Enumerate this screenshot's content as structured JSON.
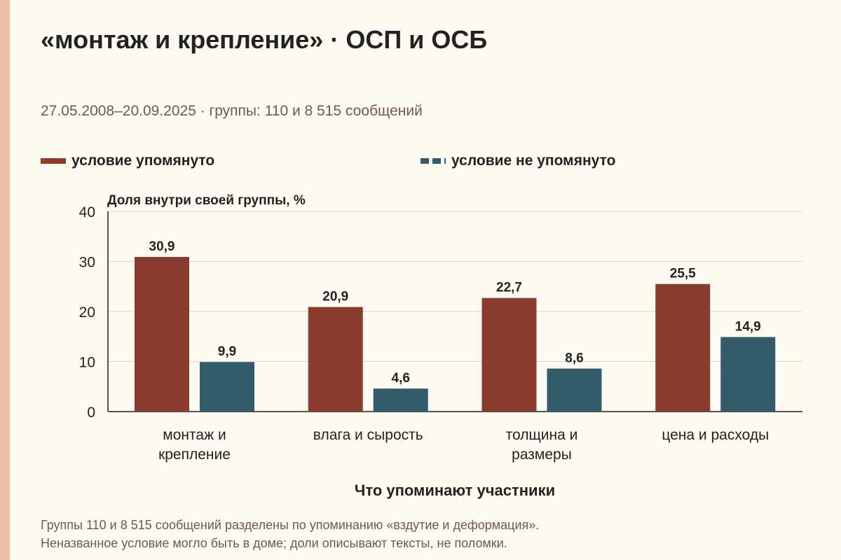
{
  "title": "«монтаж и крепление» · ОСП и ОСБ",
  "subtitle": "27.05.2008–20.09.2025 · группы: 110 и 8 515 сообщений",
  "colors": {
    "background": "#fdfaf2",
    "mentioned": "#8a3c2f",
    "not_mentioned": "#345b6a",
    "grid": "#d9d4c8",
    "axis": "#222222",
    "footnote": "#6b5a52"
  },
  "footnote": {
    "line1": "Группы 110 и 8 515 сообщений разделены по упоминанию «вздутие и деформация».",
    "line2": "Неназванное условие могло быть в доме; доли описывают тексты, не поломки."
  },
  "chart_data": {
    "type": "bar",
    "title": "«монтаж и крепление» · ОСП и ОСБ",
    "subtitle": "27.05.2008–20.09.2025 · группы: 110 и 8 515 сообщений",
    "ylabel": "Доля внутри своей группы, %",
    "xlabel": "Что упоминают участники",
    "ylim": [
      0,
      40
    ],
    "yticks": [
      0,
      10,
      20,
      30,
      40
    ],
    "grid": true,
    "legend_position": "top",
    "categories": [
      [
        "монтаж и",
        "крепление"
      ],
      [
        "влага и сырость"
      ],
      [
        "толщина и",
        "размеры"
      ],
      [
        "цена и расходы"
      ]
    ],
    "series": [
      {
        "name": "условие упомянуто",
        "values": [
          30.9,
          20.9,
          22.7,
          25.5
        ],
        "labels": [
          "30,9",
          "20,9",
          "22,7",
          "25,5"
        ]
      },
      {
        "name": "условие не упомянуто",
        "values": [
          9.9,
          4.6,
          8.6,
          14.9
        ],
        "labels": [
          "9,9",
          "4,6",
          "8,6",
          "14,9"
        ]
      }
    ]
  }
}
